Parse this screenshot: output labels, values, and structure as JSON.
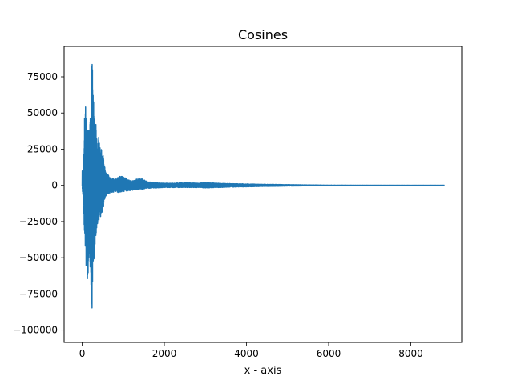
{
  "chart_data": {
    "type": "line",
    "title": "Cosines",
    "xlabel": "x - axis",
    "ylabel": "",
    "xlim": [
      -440,
      9240
    ],
    "ylim": [
      -108500,
      96000
    ],
    "xticks": [
      0,
      2000,
      4000,
      6000,
      8000
    ],
    "xtick_labels": [
      "0",
      "2000",
      "4000",
      "6000",
      "8000"
    ],
    "yticks": [
      75000,
      50000,
      25000,
      0,
      -25000,
      -50000,
      -75000,
      -100000
    ],
    "ytick_labels": [
      "75000",
      "50000",
      "25000",
      "0",
      "−25000",
      "−50000",
      "−75000",
      "−100000"
    ],
    "grid": false,
    "series": [
      {
        "color": "#1f77b4",
        "x_range": [
          0,
          8820
        ],
        "envelope_upper": [
          [
            0,
            10000
          ],
          [
            30,
            14000
          ],
          [
            50,
            30000
          ],
          [
            70,
            76000
          ],
          [
            90,
            45000
          ],
          [
            120,
            50000
          ],
          [
            150,
            42000
          ],
          [
            180,
            38000
          ],
          [
            210,
            55000
          ],
          [
            240,
            88000
          ],
          [
            270,
            67000
          ],
          [
            300,
            40000
          ],
          [
            330,
            44000
          ],
          [
            360,
            30000
          ],
          [
            400,
            35000
          ],
          [
            440,
            25000
          ],
          [
            480,
            25000
          ],
          [
            520,
            20000
          ],
          [
            560,
            10000
          ],
          [
            620,
            8000
          ],
          [
            700,
            5000
          ],
          [
            800,
            4500
          ],
          [
            900,
            6000
          ],
          [
            1000,
            7000
          ],
          [
            1100,
            4000
          ],
          [
            1200,
            3000
          ],
          [
            1300,
            4000
          ],
          [
            1400,
            5000
          ],
          [
            1500,
            4000
          ],
          [
            1600,
            2500
          ],
          [
            1800,
            2000
          ],
          [
            2000,
            1500
          ],
          [
            2200,
            1500
          ],
          [
            2500,
            2000
          ],
          [
            2800,
            1500
          ],
          [
            3000,
            2000
          ],
          [
            3300,
            1500
          ],
          [
            3600,
            1200
          ],
          [
            4000,
            1000
          ],
          [
            4500,
            700
          ],
          [
            5000,
            500
          ],
          [
            5500,
            300
          ],
          [
            5800,
            200
          ],
          [
            6000,
            80
          ],
          [
            7000,
            50
          ],
          [
            8820,
            30
          ]
        ],
        "envelope_lower": [
          [
            0,
            -3000
          ],
          [
            30,
            -10000
          ],
          [
            50,
            -30000
          ],
          [
            70,
            -38000
          ],
          [
            90,
            -55000
          ],
          [
            120,
            -70000
          ],
          [
            150,
            -60000
          ],
          [
            180,
            -45000
          ],
          [
            210,
            -72000
          ],
          [
            240,
            -103000
          ],
          [
            270,
            -58000
          ],
          [
            300,
            -48000
          ],
          [
            330,
            -35000
          ],
          [
            360,
            -32000
          ],
          [
            400,
            -25000
          ],
          [
            440,
            -22000
          ],
          [
            480,
            -20000
          ],
          [
            520,
            -15000
          ],
          [
            560,
            -8000
          ],
          [
            620,
            -6000
          ],
          [
            700,
            -5000
          ],
          [
            800,
            -4500
          ],
          [
            900,
            -5000
          ],
          [
            1000,
            -4500
          ],
          [
            1100,
            -4000
          ],
          [
            1200,
            -3500
          ],
          [
            1300,
            -3000
          ],
          [
            1400,
            -3000
          ],
          [
            1500,
            -2500
          ],
          [
            1600,
            -2000
          ],
          [
            1800,
            -1800
          ],
          [
            2000,
            -1500
          ],
          [
            2200,
            -1500
          ],
          [
            2500,
            -1500
          ],
          [
            2800,
            -1500
          ],
          [
            3000,
            -1800
          ],
          [
            3300,
            -1500
          ],
          [
            3600,
            -1200
          ],
          [
            4000,
            -1000
          ],
          [
            4500,
            -700
          ],
          [
            5000,
            -500
          ],
          [
            5500,
            -300
          ],
          [
            5800,
            -200
          ],
          [
            6000,
            -80
          ],
          [
            7000,
            -50
          ],
          [
            8820,
            -30
          ]
        ]
      }
    ]
  }
}
